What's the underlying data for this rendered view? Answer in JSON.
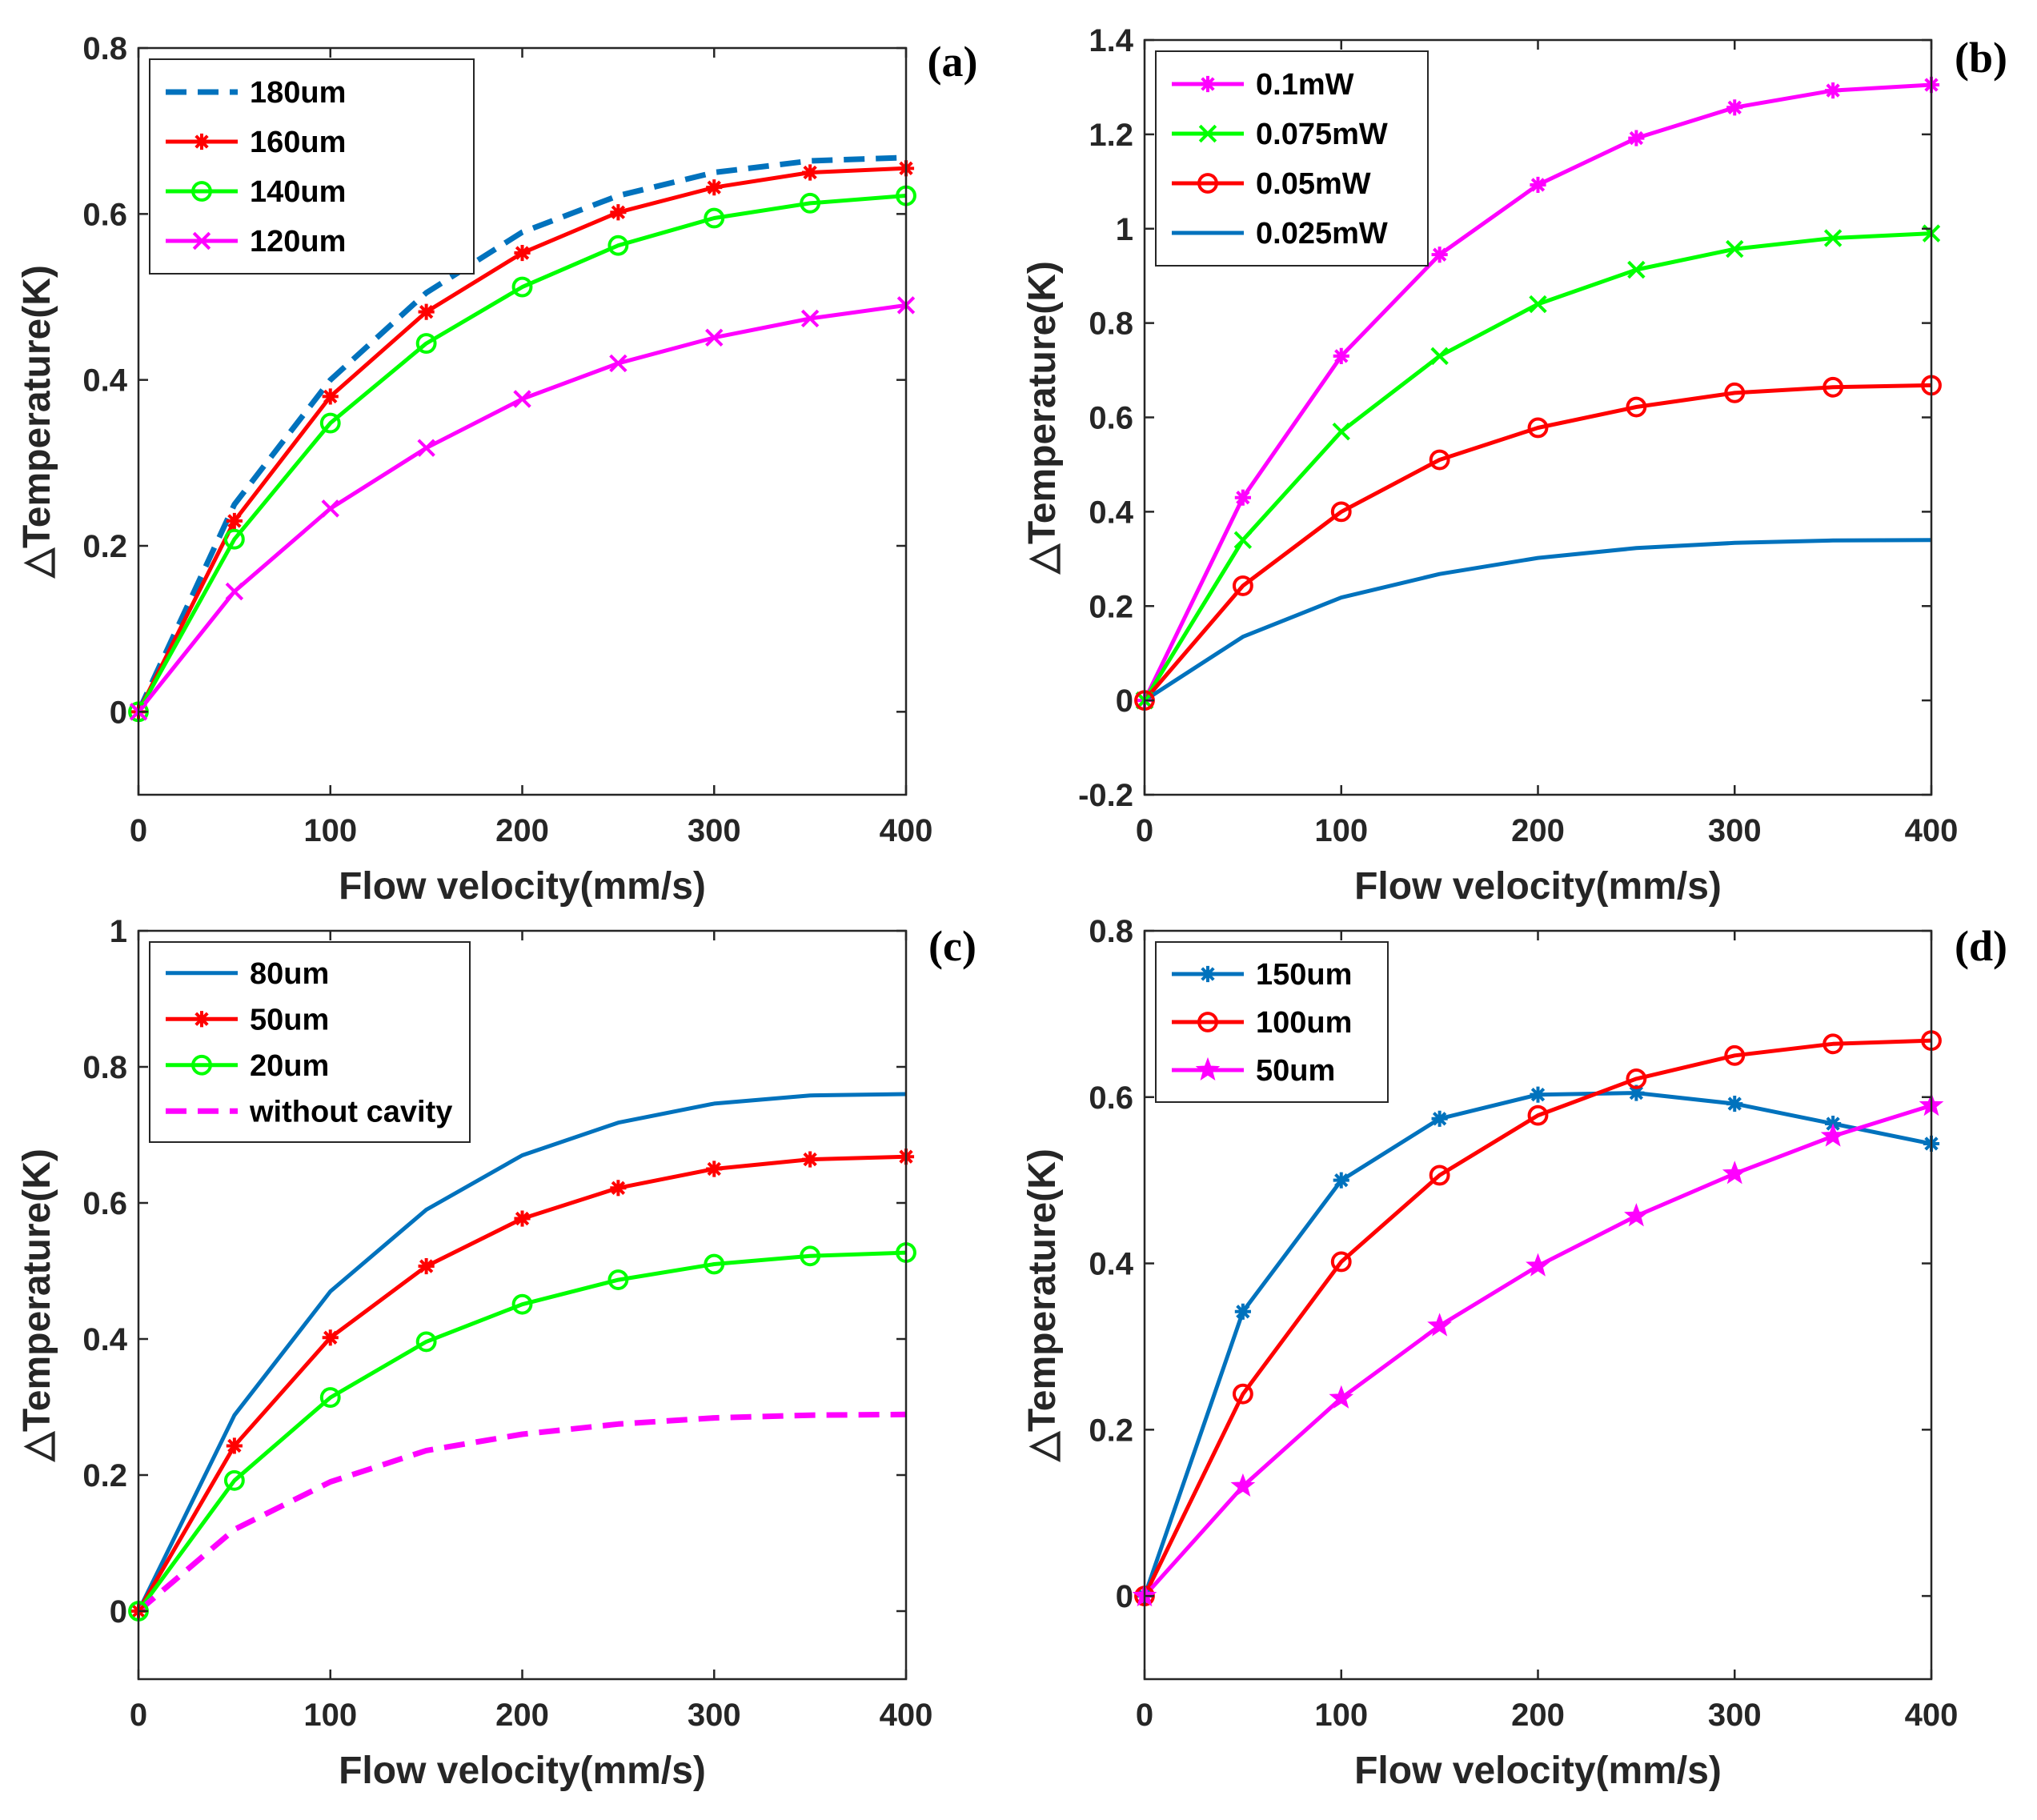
{
  "chart_data": [
    {
      "type": "line",
      "panel_label": "(a)",
      "xlabel": "Flow velocity(mm/s)",
      "ylabel": "△Temperature(K)",
      "xlim": [
        0,
        400
      ],
      "ylim": [
        -0.1,
        0.8
      ],
      "xticks": [
        0,
        100,
        200,
        300,
        400
      ],
      "yticks": [
        0,
        0.2,
        0.4,
        0.6,
        0.8
      ],
      "ytick_labels": [
        "0",
        "0.2",
        "0.4",
        "0.6",
        "0.8"
      ],
      "legend_position": "top-left",
      "x": [
        0,
        50,
        100,
        150,
        200,
        250,
        300,
        350,
        400
      ],
      "series": [
        {
          "name": "180um",
          "color": "#0072BD",
          "style": "dashed",
          "marker": "none",
          "values": [
            0,
            0.25,
            0.4,
            0.505,
            0.578,
            0.622,
            0.65,
            0.664,
            0.668
          ]
        },
        {
          "name": "160um",
          "color": "#FF0000",
          "style": "solid",
          "marker": "asterisk",
          "values": [
            0,
            0.23,
            0.38,
            0.482,
            0.553,
            0.602,
            0.632,
            0.65,
            0.655
          ]
        },
        {
          "name": "140um",
          "color": "#00FF00",
          "style": "solid",
          "marker": "circle",
          "values": [
            0,
            0.208,
            0.348,
            0.444,
            0.512,
            0.562,
            0.595,
            0.613,
            0.622
          ]
        },
        {
          "name": "120um",
          "color": "#FF00FF",
          "style": "solid",
          "marker": "x",
          "values": [
            0,
            0.145,
            0.245,
            0.318,
            0.377,
            0.42,
            0.451,
            0.474,
            0.49
          ]
        }
      ]
    },
    {
      "type": "line",
      "panel_label": "(b)",
      "xlabel": "Flow velocity(mm/s)",
      "ylabel": "△Temperature(K)",
      "xlim": [
        0,
        400
      ],
      "ylim": [
        -0.2,
        1.4
      ],
      "xticks": [
        0,
        100,
        200,
        300,
        400
      ],
      "yticks": [
        -0.2,
        0,
        0.2,
        0.4,
        0.6,
        0.8,
        1,
        1.2,
        1.4
      ],
      "ytick_labels": [
        "-0.2",
        "0",
        "0.2",
        "0.4",
        "0.6",
        "0.8",
        "1",
        "1.2",
        "1.4"
      ],
      "legend_position": "top-left",
      "x": [
        0,
        50,
        100,
        150,
        200,
        250,
        300,
        350,
        400
      ],
      "series": [
        {
          "name": "0.1mW",
          "color": "#FF00FF",
          "style": "solid",
          "marker": "asterisk",
          "values": [
            0,
            0.43,
            0.73,
            0.945,
            1.093,
            1.192,
            1.257,
            1.293,
            1.305
          ]
        },
        {
          "name": "0.075mW",
          "color": "#00FF00",
          "style": "solid",
          "marker": "x",
          "values": [
            0,
            0.34,
            0.57,
            0.73,
            0.84,
            0.913,
            0.957,
            0.98,
            0.99
          ]
        },
        {
          "name": "0.05mW",
          "color": "#FF0000",
          "style": "solid",
          "marker": "circle",
          "values": [
            0,
            0.243,
            0.4,
            0.51,
            0.578,
            0.622,
            0.652,
            0.664,
            0.668
          ]
        },
        {
          "name": "0.025mW",
          "color": "#0072BD",
          "style": "solid",
          "marker": "none",
          "values": [
            0,
            0.135,
            0.218,
            0.268,
            0.302,
            0.323,
            0.334,
            0.339,
            0.34
          ]
        }
      ]
    },
    {
      "type": "line",
      "panel_label": "(c)",
      "xlabel": "Flow velocity(mm/s)",
      "ylabel": "△Temperature(K)",
      "xlim": [
        0,
        400
      ],
      "ylim": [
        -0.1,
        1
      ],
      "xticks": [
        0,
        100,
        200,
        300,
        400
      ],
      "yticks": [
        0,
        0.2,
        0.4,
        0.6,
        0.8,
        1
      ],
      "ytick_labels": [
        "0",
        "0.2",
        "0.4",
        "0.6",
        "0.8",
        "1"
      ],
      "legend_position": "top-left",
      "x": [
        0,
        50,
        100,
        150,
        200,
        250,
        300,
        350,
        400
      ],
      "series": [
        {
          "name": "80um",
          "color": "#0072BD",
          "style": "solid",
          "marker": "none",
          "values": [
            0,
            0.288,
            0.47,
            0.59,
            0.67,
            0.718,
            0.746,
            0.758,
            0.76
          ]
        },
        {
          "name": "50um",
          "color": "#FF0000",
          "style": "solid",
          "marker": "asterisk",
          "values": [
            0,
            0.243,
            0.402,
            0.507,
            0.577,
            0.622,
            0.65,
            0.664,
            0.668
          ]
        },
        {
          "name": "20um",
          "color": "#00FF00",
          "style": "solid",
          "marker": "circle",
          "values": [
            0,
            0.192,
            0.314,
            0.396,
            0.451,
            0.487,
            0.51,
            0.522,
            0.527
          ]
        },
        {
          "name": "without cavity",
          "color": "#FF00FF",
          "style": "dashed",
          "marker": "none",
          "values": [
            0,
            0.12,
            0.19,
            0.236,
            0.26,
            0.275,
            0.284,
            0.288,
            0.289
          ]
        }
      ]
    },
    {
      "type": "line",
      "panel_label": "(d)",
      "xlabel": "Flow velocity(mm/s)",
      "ylabel": "△Temperature(K)",
      "xlim": [
        0,
        400
      ],
      "ylim": [
        -0.1,
        0.8
      ],
      "xticks": [
        0,
        100,
        200,
        300,
        400
      ],
      "yticks": [
        0,
        0.2,
        0.4,
        0.6,
        0.8
      ],
      "ytick_labels": [
        "0",
        "0.2",
        "0.4",
        "0.6",
        "0.8"
      ],
      "legend_position": "top-left",
      "x": [
        0,
        50,
        100,
        150,
        200,
        250,
        300,
        350,
        400
      ],
      "series": [
        {
          "name": "150um",
          "color": "#0072BD",
          "style": "solid",
          "marker": "asterisk",
          "values": [
            0,
            0.342,
            0.5,
            0.574,
            0.603,
            0.605,
            0.592,
            0.568,
            0.544
          ]
        },
        {
          "name": "100um",
          "color": "#FF0000",
          "style": "solid",
          "marker": "circle",
          "values": [
            0,
            0.243,
            0.402,
            0.506,
            0.578,
            0.622,
            0.65,
            0.664,
            0.668
          ]
        },
        {
          "name": "50um",
          "color": "#FF00FF",
          "style": "solid",
          "marker": "star",
          "values": [
            0,
            0.132,
            0.238,
            0.325,
            0.397,
            0.457,
            0.508,
            0.553,
            0.59
          ]
        }
      ]
    }
  ]
}
